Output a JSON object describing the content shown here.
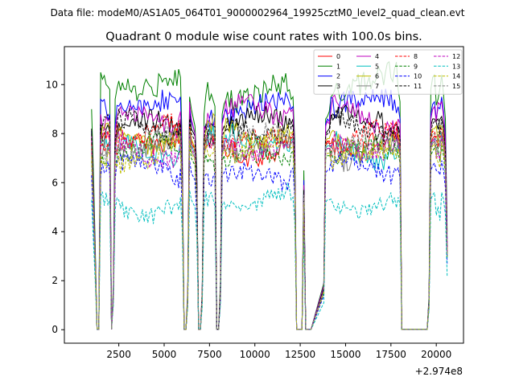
{
  "suptitle": "Data file: modeM0/AS1A05_064T01_9000002964_19925cztM0_level2_quad_clean.evt",
  "chart_data": {
    "type": "line",
    "title": "Quadrant 0 module wise count rates with 100.0s bins.",
    "xlabel": "",
    "ylabel": "",
    "x_offset_label": "+2.974e8",
    "xlim": [
      -500,
      21500
    ],
    "ylim": [
      -0.55,
      11.55
    ],
    "xticks": [
      2500,
      5000,
      7500,
      10000,
      12500,
      15000,
      17500,
      20000
    ],
    "xtick_labels": [
      "2500",
      "5000",
      "7500",
      "10000",
      "12500",
      "15000",
      "17500",
      "20000"
    ],
    "yticks": [
      0,
      2,
      4,
      6,
      8,
      10
    ],
    "ytick_labels": [
      "0",
      "2",
      "4",
      "6",
      "8",
      "10"
    ],
    "grid": false,
    "legend_position": "upper right",
    "legend_columns": 4,
    "x_break_points": [
      1000,
      1100,
      1200,
      1300,
      1400,
      2100,
      2200,
      2300,
      5900,
      6000,
      6100,
      6200,
      6300,
      6400,
      6500,
      6700,
      6800,
      6900,
      7000,
      7100,
      7200,
      7900,
      8000,
      8100,
      8200,
      8300,
      12000,
      12100,
      12200,
      12300,
      12400,
      12600,
      12700,
      12800,
      12900,
      13000,
      13100,
      13800,
      13900,
      14000,
      14100,
      17900,
      18000,
      18100,
      18200,
      18300,
      19500,
      19600,
      19700,
      19800,
      19900,
      20300,
      20400,
      20500,
      20600
    ],
    "series": [
      {
        "name": "0",
        "color": "#ff0000",
        "dash": "solid",
        "level": 7.6,
        "break_values": [
          7.8,
          5.2,
          2.8,
          0.02,
          0.02,
          0.02,
          1.4,
          7.2,
          7.8,
          5.8,
          0.02,
          0.02,
          1.2,
          8.4,
          7.6,
          7.4,
          5.5,
          0.02,
          0.02,
          1.3,
          7.4,
          0.02,
          0.02,
          1.4,
          7.4,
          7.6,
          7.8,
          7.9,
          6.5,
          0.02,
          0.02,
          0.02,
          5.6,
          0.02,
          0.02,
          0.02,
          0.02,
          1.6,
          7.5,
          7.7,
          7.6,
          7.7,
          7.3,
          0.02,
          0.02,
          0.02,
          0.02,
          1.1,
          7.6,
          7.8,
          7.9,
          8.0,
          7.7,
          6.8,
          3.1
        ]
      },
      {
        "name": "1",
        "color": "#008000",
        "dash": "solid",
        "level": 9.9,
        "break_values": [
          9.0,
          6.4,
          3.5,
          0.02,
          0.02,
          0.02,
          1.8,
          9.4,
          10.3,
          7.4,
          0.02,
          0.02,
          1.6,
          9.5,
          9.0,
          8.3,
          6.6,
          0.02,
          0.02,
          1.6,
          8.8,
          0.02,
          0.02,
          1.9,
          8.8,
          9.2,
          9.4,
          9.5,
          7.7,
          0.02,
          0.02,
          0.02,
          6.5,
          0.02,
          0.02,
          0.02,
          0.02,
          1.9,
          8.6,
          8.7,
          8.9,
          9.8,
          9.3,
          0.02,
          0.02,
          0.02,
          0.02,
          1.4,
          9.8,
          10.3,
          10.4,
          10.4,
          9.6,
          8.6,
          4.0
        ]
      },
      {
        "name": "2",
        "color": "#0000ff",
        "dash": "solid",
        "level": 9.1,
        "break_values": [
          8.1,
          5.6,
          3.2,
          0.02,
          0.02,
          0.02,
          1.6,
          8.3,
          9.5,
          6.8,
          0.02,
          0.02,
          1.4,
          9.0,
          8.5,
          8.0,
          6.2,
          0.02,
          0.02,
          1.4,
          8.2,
          0.02,
          0.02,
          1.6,
          8.5,
          8.8,
          9.0,
          9.1,
          7.2,
          0.02,
          0.02,
          0.02,
          6.1,
          0.02,
          0.02,
          0.02,
          0.02,
          1.8,
          8.4,
          8.6,
          8.5,
          9.1,
          8.6,
          0.02,
          0.02,
          0.02,
          0.02,
          1.3,
          8.8,
          9.2,
          9.3,
          9.5,
          8.9,
          7.9,
          3.7
        ]
      },
      {
        "name": "3",
        "color": "#000000",
        "dash": "solid",
        "level": 8.4,
        "break_values": [
          8.2,
          5.4,
          3.0,
          0.02,
          0.02,
          0.02,
          1.5,
          7.9,
          8.6,
          6.3,
          0.02,
          0.02,
          1.3,
          8.8,
          8.2,
          7.9,
          6.0,
          0.02,
          0.02,
          1.4,
          8.0,
          0.02,
          0.02,
          1.5,
          8.1,
          8.3,
          8.4,
          8.6,
          6.9,
          0.02,
          0.02,
          0.02,
          5.8,
          0.02,
          0.02,
          0.02,
          0.02,
          1.7,
          8.0,
          8.1,
          8.2,
          8.3,
          8.0,
          0.02,
          0.02,
          0.02,
          0.02,
          1.2,
          8.3,
          8.6,
          8.6,
          8.7,
          8.3,
          7.4,
          3.4
        ]
      },
      {
        "name": "4",
        "color": "#bf00bf",
        "dash": "solid",
        "level": 8.7,
        "break_values": [
          7.9,
          5.5,
          3.0,
          0.02,
          0.02,
          0.02,
          1.5,
          8.1,
          8.9,
          6.4,
          0.02,
          0.02,
          1.4,
          9.3,
          8.6,
          8.0,
          6.0,
          0.02,
          0.02,
          1.5,
          8.3,
          0.02,
          0.02,
          1.6,
          8.4,
          8.7,
          8.9,
          9.0,
          7.1,
          0.02,
          0.02,
          0.02,
          5.9,
          0.02,
          0.02,
          0.02,
          0.02,
          1.8,
          8.3,
          8.5,
          8.4,
          8.6,
          8.4,
          0.02,
          0.02,
          0.02,
          0.02,
          1.2,
          8.6,
          9.0,
          9.1,
          9.3,
          8.7,
          7.7,
          3.5
        ]
      },
      {
        "name": "5",
        "color": "#00bfbf",
        "dash": "solid",
        "level": 7.5,
        "break_values": [
          7.5,
          5.0,
          2.8,
          0.02,
          0.02,
          0.02,
          1.4,
          7.1,
          7.7,
          5.7,
          0.02,
          0.02,
          1.2,
          8.1,
          7.5,
          7.2,
          5.4,
          0.02,
          0.02,
          1.3,
          7.3,
          0.02,
          0.02,
          1.4,
          7.3,
          7.5,
          7.7,
          7.8,
          6.3,
          0.02,
          0.02,
          0.02,
          5.4,
          0.02,
          0.02,
          0.02,
          0.02,
          1.6,
          7.4,
          7.5,
          7.5,
          7.6,
          7.2,
          0.02,
          0.02,
          0.02,
          0.02,
          1.1,
          7.5,
          7.7,
          7.8,
          7.9,
          7.6,
          6.7,
          3.0
        ]
      },
      {
        "name": "6",
        "color": "#bfbf00",
        "dash": "solid",
        "level": 7.9,
        "break_values": [
          7.4,
          5.1,
          2.8,
          0.02,
          0.02,
          0.02,
          1.4,
          7.4,
          8.1,
          5.9,
          0.02,
          0.02,
          1.3,
          8.4,
          7.8,
          7.4,
          5.6,
          0.02,
          0.02,
          1.3,
          7.6,
          0.02,
          0.02,
          1.5,
          7.6,
          7.9,
          8.0,
          8.1,
          6.6,
          0.02,
          0.02,
          0.02,
          5.5,
          0.02,
          0.02,
          0.02,
          0.02,
          1.6,
          7.7,
          7.8,
          7.8,
          8.0,
          7.6,
          0.02,
          0.02,
          0.02,
          0.02,
          1.1,
          7.9,
          8.2,
          8.2,
          8.3,
          7.9,
          7.0,
          3.2
        ]
      },
      {
        "name": "7",
        "color": "#808080",
        "dash": "solid",
        "level": 7.4,
        "break_values": [
          7.2,
          4.9,
          2.7,
          0.02,
          0.02,
          0.02,
          1.3,
          7.0,
          7.6,
          5.6,
          0.02,
          0.02,
          1.2,
          7.9,
          7.3,
          7.0,
          5.3,
          0.02,
          0.02,
          1.3,
          7.1,
          0.02,
          0.02,
          1.4,
          7.2,
          7.4,
          7.6,
          7.7,
          6.2,
          0.02,
          0.02,
          0.02,
          5.3,
          0.02,
          0.02,
          0.02,
          0.02,
          1.5,
          7.3,
          7.4,
          7.4,
          7.5,
          7.1,
          0.02,
          0.02,
          0.02,
          0.02,
          1.0,
          7.4,
          7.6,
          7.7,
          7.8,
          7.5,
          6.6,
          3.0
        ]
      },
      {
        "name": "8",
        "color": "#ff0000",
        "dash": "dashed",
        "level": 7.8,
        "break_values": [
          7.6,
          5.1,
          2.8,
          0.02,
          0.02,
          0.02,
          1.4,
          7.3,
          8.0,
          5.8,
          0.02,
          0.02,
          1.3,
          8.3,
          7.7,
          7.3,
          5.5,
          0.02,
          0.02,
          1.3,
          7.5,
          0.02,
          0.02,
          1.5,
          7.5,
          7.8,
          7.9,
          8.0,
          6.5,
          0.02,
          0.02,
          0.02,
          5.5,
          0.02,
          0.02,
          0.02,
          0.02,
          1.6,
          7.6,
          7.7,
          7.7,
          7.9,
          7.5,
          0.02,
          0.02,
          0.02,
          0.02,
          1.1,
          7.8,
          8.1,
          8.1,
          8.2,
          7.8,
          6.9,
          3.2
        ]
      },
      {
        "name": "9",
        "color": "#008000",
        "dash": "dashed",
        "level": 7.1,
        "break_values": [
          6.9,
          4.7,
          2.6,
          0.02,
          0.02,
          0.02,
          1.3,
          6.7,
          7.3,
          5.4,
          0.02,
          0.02,
          1.2,
          7.6,
          7.0,
          6.7,
          5.1,
          0.02,
          0.02,
          1.2,
          6.8,
          0.02,
          0.02,
          1.3,
          6.9,
          7.1,
          7.2,
          7.3,
          5.9,
          0.02,
          0.02,
          0.02,
          5.1,
          0.02,
          0.02,
          0.02,
          0.02,
          1.5,
          7.0,
          7.1,
          7.1,
          7.2,
          6.8,
          0.02,
          0.02,
          0.02,
          0.02,
          1.0,
          7.1,
          7.3,
          7.4,
          7.5,
          7.1,
          6.3,
          2.9
        ]
      },
      {
        "name": "10",
        "color": "#0000ff",
        "dash": "dashed",
        "level": 6.4,
        "break_values": [
          6.3,
          4.3,
          2.4,
          0.02,
          0.02,
          0.02,
          1.2,
          6.1,
          6.6,
          4.9,
          0.02,
          0.02,
          1.1,
          6.9,
          6.4,
          6.1,
          4.6,
          0.02,
          0.02,
          1.1,
          6.2,
          0.02,
          0.02,
          1.2,
          6.3,
          6.4,
          6.5,
          6.6,
          5.4,
          0.02,
          0.02,
          0.02,
          4.7,
          0.02,
          0.02,
          0.02,
          0.02,
          1.4,
          6.4,
          6.5,
          6.5,
          6.6,
          6.2,
          0.02,
          0.02,
          0.02,
          0.02,
          0.9,
          6.5,
          6.7,
          6.8,
          6.9,
          6.5,
          5.8,
          2.7
        ]
      },
      {
        "name": "11",
        "color": "#000000",
        "dash": "dashed",
        "level": 8.2,
        "break_values": [
          8.0,
          5.3,
          2.9,
          0.02,
          0.02,
          0.02,
          1.5,
          7.7,
          8.4,
          6.1,
          0.02,
          0.02,
          1.3,
          8.6,
          8.0,
          7.7,
          5.8,
          0.02,
          0.02,
          1.4,
          7.8,
          0.02,
          0.02,
          1.5,
          7.9,
          8.1,
          8.2,
          8.4,
          6.8,
          0.02,
          0.02,
          0.02,
          5.7,
          0.02,
          0.02,
          0.02,
          0.02,
          1.7,
          7.9,
          8.0,
          8.0,
          8.2,
          7.8,
          0.02,
          0.02,
          0.02,
          0.02,
          1.2,
          8.1,
          8.4,
          8.5,
          8.6,
          8.2,
          7.3,
          3.3
        ]
      },
      {
        "name": "12",
        "color": "#bf00bf",
        "dash": "dashed",
        "level": 7.5,
        "break_values": [
          7.3,
          5.0,
          2.7,
          0.02,
          0.02,
          0.02,
          1.4,
          7.1,
          7.7,
          5.7,
          0.02,
          0.02,
          1.2,
          8.0,
          7.4,
          7.1,
          5.4,
          0.02,
          0.02,
          1.3,
          7.2,
          0.02,
          0.02,
          1.4,
          7.3,
          7.5,
          7.6,
          7.7,
          6.3,
          0.02,
          0.02,
          0.02,
          5.4,
          0.02,
          0.02,
          0.02,
          0.02,
          1.6,
          7.3,
          7.4,
          7.4,
          7.6,
          7.2,
          0.02,
          0.02,
          0.02,
          0.02,
          1.1,
          7.5,
          7.7,
          7.8,
          7.9,
          7.5,
          6.7,
          3.1
        ]
      },
      {
        "name": "13",
        "color": "#00bfbf",
        "dash": "dashed",
        "level": 5.2,
        "break_values": [
          5.3,
          3.6,
          2.0,
          0.02,
          0.02,
          0.02,
          1.0,
          4.9,
          5.4,
          4.0,
          0.02,
          0.02,
          0.9,
          5.7,
          5.3,
          5.0,
          3.8,
          0.02,
          0.02,
          0.9,
          5.0,
          0.02,
          0.02,
          1.0,
          5.1,
          5.2,
          5.3,
          5.4,
          4.4,
          0.02,
          0.02,
          0.02,
          3.9,
          0.02,
          0.02,
          0.02,
          0.02,
          1.1,
          5.2,
          5.3,
          5.3,
          5.4,
          5.1,
          0.02,
          0.02,
          0.02,
          0.02,
          0.8,
          5.3,
          5.5,
          5.6,
          5.6,
          5.3,
          4.7,
          2.2
        ]
      },
      {
        "name": "14",
        "color": "#bfbf00",
        "dash": "dashed",
        "level": 7.3,
        "break_values": [
          7.1,
          4.8,
          2.7,
          0.02,
          0.02,
          0.02,
          1.3,
          6.9,
          7.5,
          5.5,
          0.02,
          0.02,
          1.2,
          7.8,
          7.2,
          6.9,
          5.2,
          0.02,
          0.02,
          1.2,
          7.0,
          0.02,
          0.02,
          1.4,
          7.1,
          7.3,
          7.4,
          7.5,
          6.1,
          0.02,
          0.02,
          0.02,
          5.2,
          0.02,
          0.02,
          0.02,
          0.02,
          1.5,
          7.1,
          7.2,
          7.2,
          7.4,
          7.0,
          0.02,
          0.02,
          0.02,
          0.02,
          1.0,
          7.3,
          7.5,
          7.6,
          7.7,
          7.3,
          6.5,
          3.0
        ]
      },
      {
        "name": "15",
        "color": "#808080",
        "dash": "dashed",
        "level": 7.7,
        "break_values": [
          7.5,
          5.0,
          2.8,
          0.02,
          0.02,
          0.02,
          1.4,
          7.2,
          7.9,
          5.8,
          0.02,
          0.02,
          1.2,
          8.2,
          7.6,
          7.2,
          5.5,
          0.02,
          0.02,
          1.3,
          7.4,
          0.02,
          0.02,
          1.4,
          7.4,
          7.6,
          7.8,
          7.9,
          6.4,
          0.02,
          0.02,
          0.02,
          5.5,
          0.02,
          0.02,
          0.02,
          0.02,
          1.6,
          7.5,
          7.6,
          7.6,
          7.8,
          7.4,
          0.02,
          0.02,
          0.02,
          0.02,
          1.1,
          7.7,
          8.0,
          8.0,
          8.1,
          7.7,
          6.8,
          3.1
        ]
      }
    ],
    "active_segments": [
      [
        1400,
        2000
      ],
      [
        2300,
        5900
      ],
      [
        7200,
        7900
      ],
      [
        8300,
        12000
      ],
      [
        14100,
        17900
      ],
      [
        19900,
        20300
      ]
    ]
  }
}
